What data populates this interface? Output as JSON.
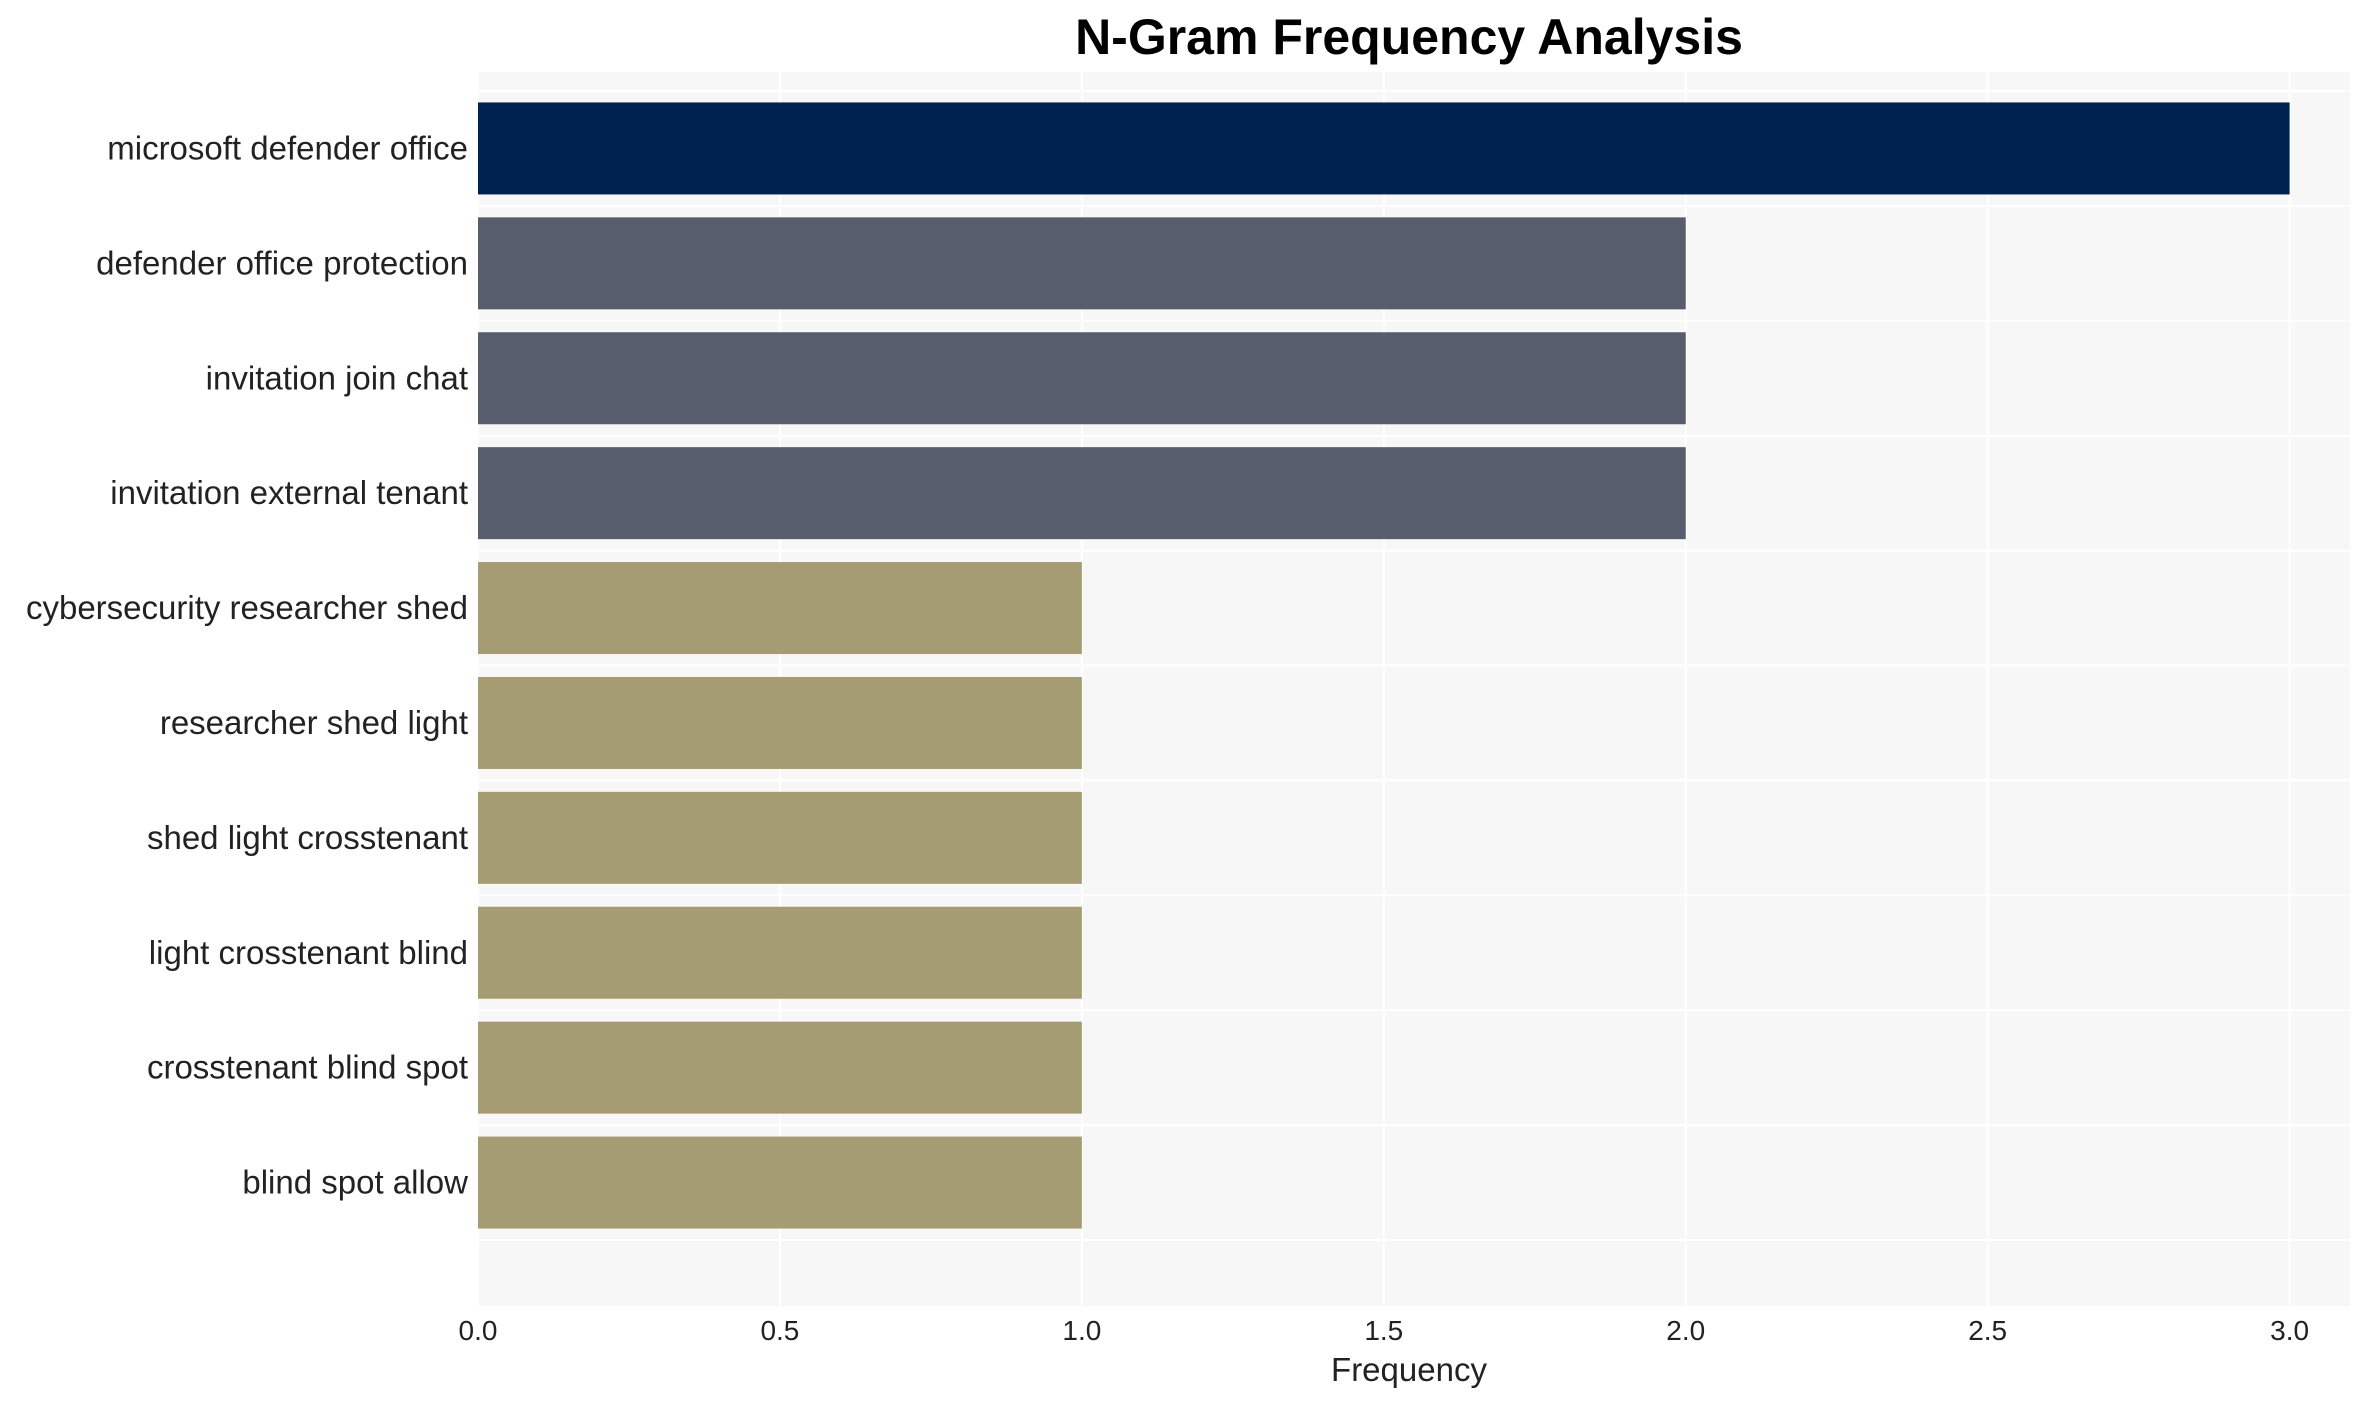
{
  "chart_data": {
    "type": "bar",
    "orientation": "horizontal",
    "title": "N-Gram Frequency Analysis",
    "xlabel": "Frequency",
    "ylabel": "",
    "categories": [
      "microsoft defender office",
      "defender office protection",
      "invitation join chat",
      "invitation external tenant",
      "cybersecurity researcher shed",
      "researcher shed light",
      "shed light crosstenant",
      "light crosstenant blind",
      "crosstenant blind spot",
      "blind spot allow"
    ],
    "values": [
      3,
      2,
      2,
      2,
      1,
      1,
      1,
      1,
      1,
      1
    ],
    "bar_colors": [
      "#00224e",
      "#575d6d",
      "#575d6d",
      "#575d6d",
      "#a59c74",
      "#a59c74",
      "#a59c74",
      "#a59c74",
      "#a59c74",
      "#a59c74"
    ],
    "xlim": [
      0,
      3.1
    ],
    "xticks": [
      0.0,
      0.5,
      1.0,
      1.5,
      2.0,
      2.5,
      3.0
    ],
    "xtick_labels": [
      "0.0",
      "0.5",
      "1.0",
      "1.5",
      "2.0",
      "2.5",
      "3.0"
    ],
    "grid": true,
    "background": "#f7f7f7"
  }
}
